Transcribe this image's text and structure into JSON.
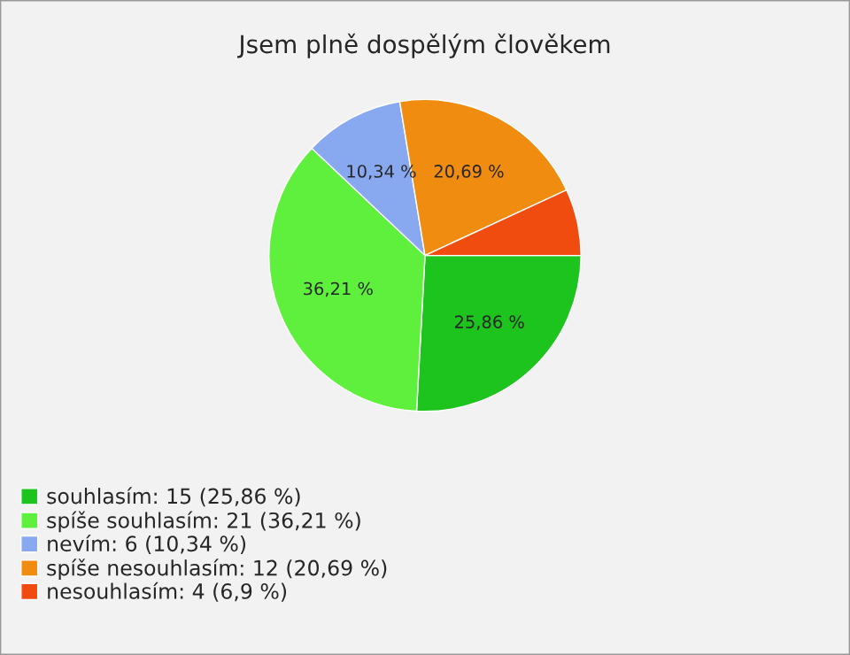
{
  "chart_data": {
    "type": "pie",
    "title": "Jsem plně dospělým člověkem",
    "categories": [
      "souhlasím: 15 (25,86 %)",
      "spíše souhlasím: 21 (36,21 %)",
      "nevím: 6 (10,34 %)",
      "spíše nesouhlasím: 12 (20,69 %)",
      "nesouhlasím: 4 (6,9 %)"
    ],
    "values": [
      25.86,
      36.21,
      10.34,
      20.69,
      6.9
    ],
    "value_labels": [
      "25,86 %",
      "36,21 %",
      "10,34 %",
      "20,69 %",
      null
    ],
    "colors": [
      "#1ec41e",
      "#5ef03c",
      "#88a8f0",
      "#f08c10",
      "#f04c10"
    ],
    "legend": "bottom left"
  }
}
